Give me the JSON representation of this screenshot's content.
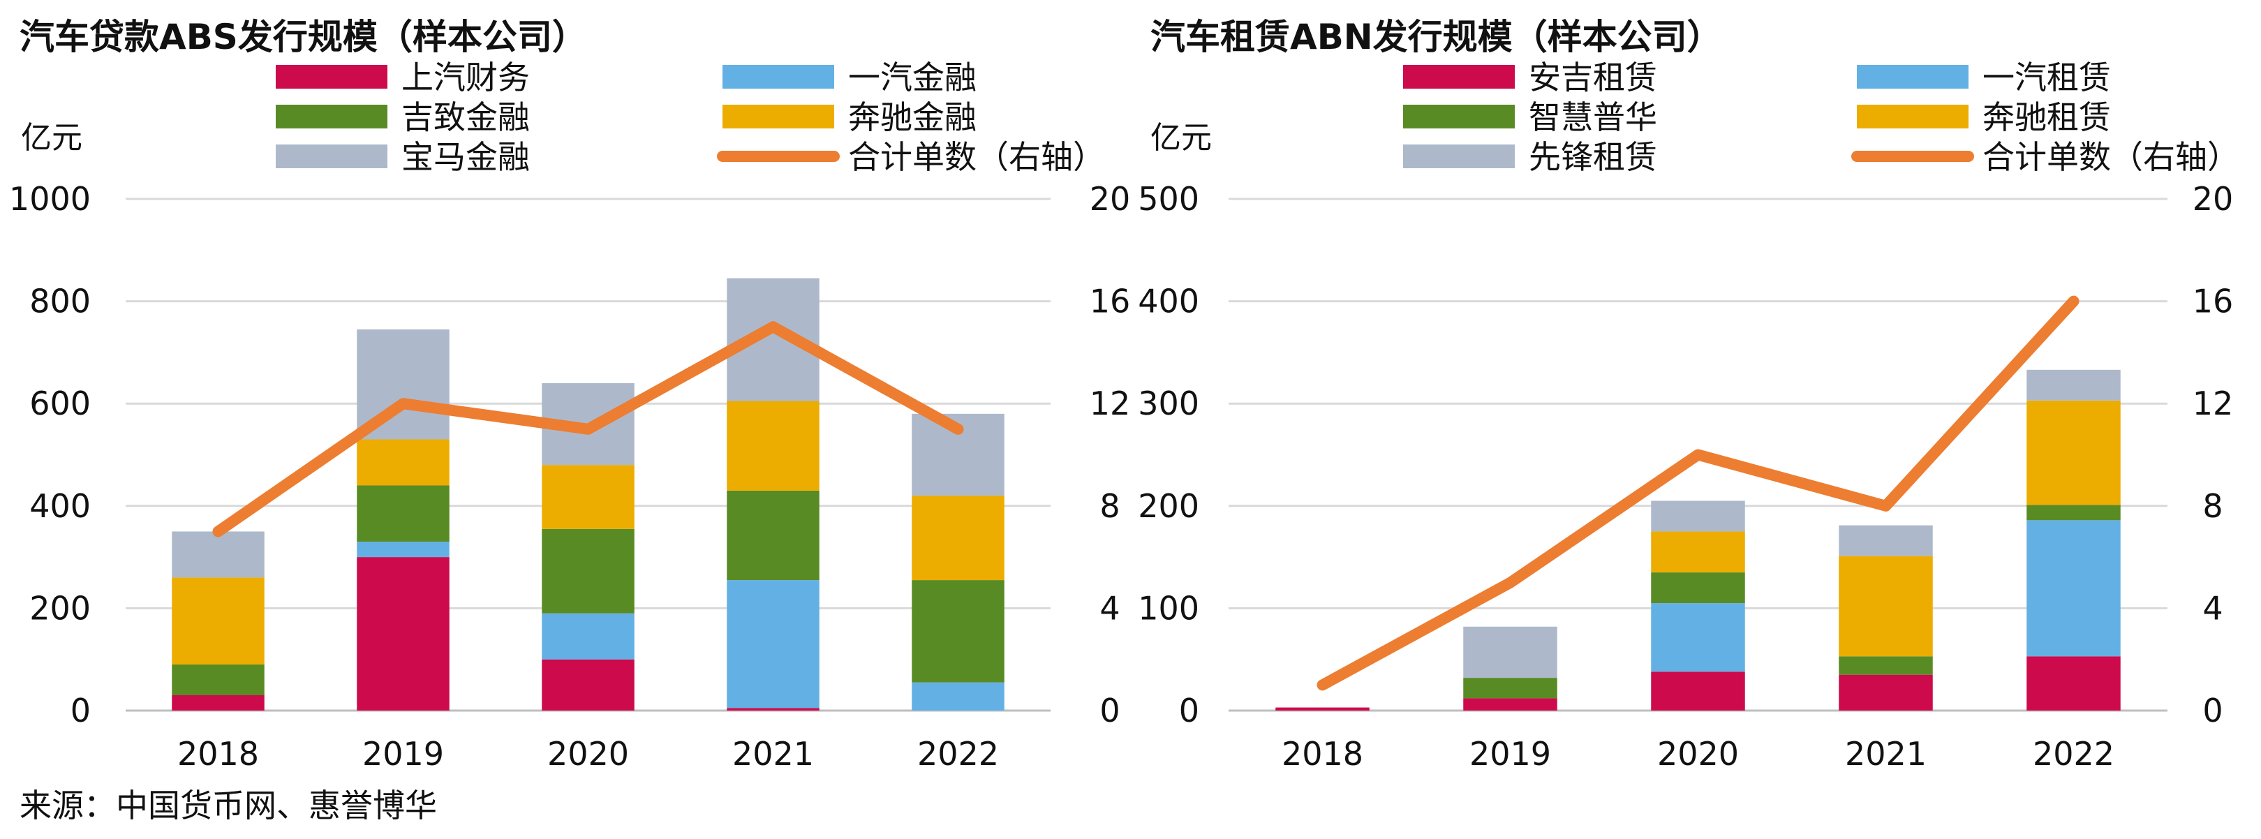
{
  "source": "来源：中国货币网、惠誉博华",
  "chart_data": [
    {
      "type": "bar",
      "stacked": true,
      "title": "汽车贷款ABS发行规模（样本公司）",
      "ylabel": "亿元",
      "categories": [
        "2018",
        "2019",
        "2020",
        "2021",
        "2022"
      ],
      "ylim": [
        0,
        1000
      ],
      "yticks": [
        "0",
        "200",
        "400",
        "600",
        "800",
        "1000"
      ],
      "y2lim": [
        0,
        20
      ],
      "y2ticks": [
        "0",
        "4",
        "8",
        "12",
        "16",
        "20"
      ],
      "grid": true,
      "series": [
        {
          "name": "上汽财务",
          "color": "#cc0a4c",
          "values": [
            30,
            300,
            100,
            5,
            0
          ]
        },
        {
          "name": "一汽金融",
          "color": "#63b1e4",
          "values": [
            0,
            30,
            90,
            250,
            55
          ]
        },
        {
          "name": "吉致金融",
          "color": "#598b25",
          "values": [
            60,
            110,
            165,
            175,
            200
          ]
        },
        {
          "name": "奔驰金融",
          "color": "#edac00",
          "values": [
            170,
            90,
            125,
            175,
            165
          ]
        },
        {
          "name": "宝马金融",
          "color": "#adb9ca",
          "values": [
            90,
            215,
            160,
            240,
            160
          ]
        }
      ],
      "line": {
        "name": "合计单数（右轴）",
        "color": "#ed7d31",
        "values": [
          7,
          12,
          11,
          15,
          11
        ]
      }
    },
    {
      "type": "bar",
      "stacked": true,
      "title": "汽车租赁ABN发行规模（样本公司）",
      "ylabel": "亿元",
      "categories": [
        "2018",
        "2019",
        "2020",
        "2021",
        "2022"
      ],
      "ylim": [
        0,
        500
      ],
      "yticks": [
        "0",
        "100",
        "200",
        "300",
        "400",
        "500"
      ],
      "y2lim": [
        0,
        20
      ],
      "y2ticks": [
        "0",
        "4",
        "8",
        "12",
        "16",
        "20"
      ],
      "grid": true,
      "series": [
        {
          "name": "安吉租赁",
          "color": "#cc0a4c",
          "values": [
            3,
            12,
            38,
            35,
            53
          ]
        },
        {
          "name": "一汽租赁",
          "color": "#63b1e4",
          "values": [
            0,
            0,
            67,
            0,
            133
          ]
        },
        {
          "name": "智慧普华",
          "color": "#598b25",
          "values": [
            0,
            20,
            30,
            18,
            15
          ]
        },
        {
          "name": "奔驰租赁",
          "color": "#edac00",
          "values": [
            0,
            0,
            40,
            98,
            102
          ]
        },
        {
          "name": "先锋租赁",
          "color": "#adb9ca",
          "values": [
            0,
            50,
            30,
            30,
            30
          ]
        }
      ],
      "line": {
        "name": "合计单数（右轴）",
        "color": "#ed7d31",
        "values": [
          1,
          5,
          10,
          8,
          16
        ]
      }
    }
  ]
}
